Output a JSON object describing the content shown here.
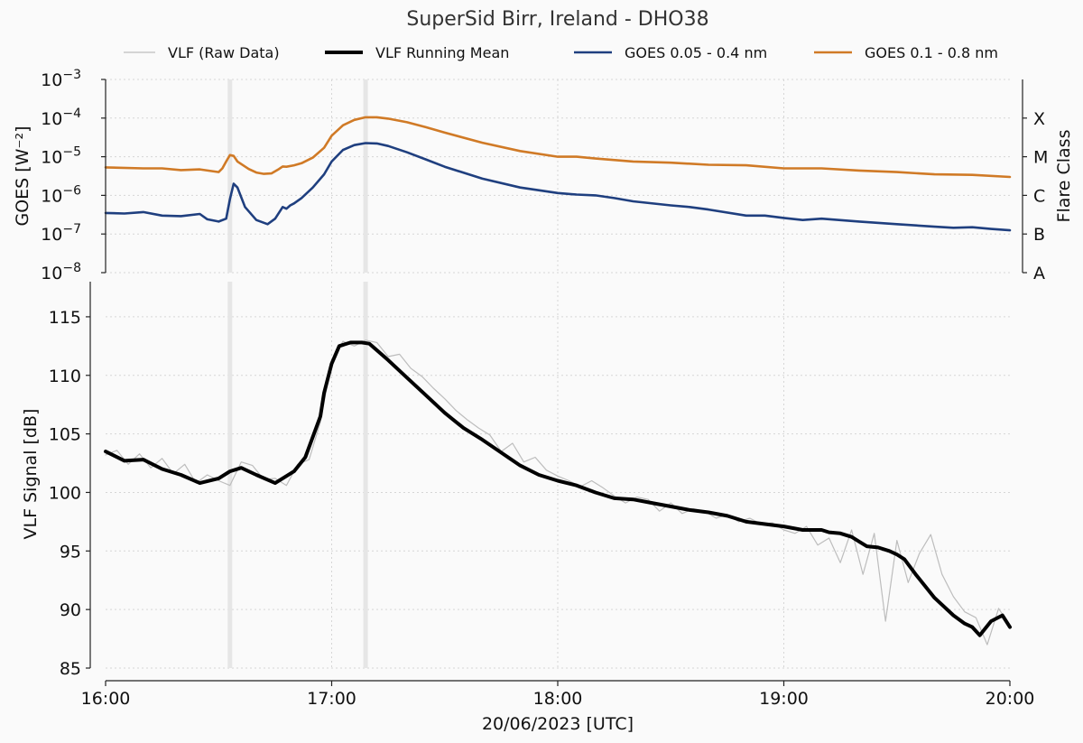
{
  "title": "SuperSid Birr, Ireland - DHO38",
  "legend": [
    {
      "label": "VLF (Raw Data)",
      "color": "#bdbdbd",
      "width": 1.2
    },
    {
      "label": "VLF Running Mean",
      "color": "#000000",
      "width": 4
    },
    {
      "label": "GOES 0.05 - 0.4 nm",
      "color": "#1f3f7f",
      "width": 2.5
    },
    {
      "label": "GOES 0.1 - 0.8 nm",
      "color": "#d07a26",
      "width": 2.5
    }
  ],
  "chart_data": [
    {
      "type": "line",
      "panel": "top",
      "ylabel": "GOES [W⁻²]",
      "yscale": "log",
      "ylim": [
        1e-08,
        0.001
      ],
      "ytick_labels": [
        {
          "exp": "-3"
        },
        {
          "exp": "-4"
        },
        {
          "exp": "-5"
        },
        {
          "exp": "-6"
        },
        {
          "exp": "-7"
        },
        {
          "exp": "-8"
        }
      ],
      "ytick_base": "10",
      "y2label": "Flare Class",
      "y2tick_labels": [
        "X",
        "M",
        "C",
        "B",
        "A"
      ],
      "xlim": [
        "16:00",
        "20:00"
      ],
      "grid": true,
      "event_markers": [
        "16:33",
        "17:09"
      ],
      "series": [
        {
          "name": "GOES 0.1 - 0.8 nm",
          "color": "#d07a26",
          "x": [
            "16:00",
            "16:10",
            "16:15",
            "16:20",
            "16:25",
            "16:30",
            "16:31",
            "16:32",
            "16:33",
            "16:34",
            "16:35",
            "16:38",
            "16:40",
            "16:42",
            "16:44",
            "16:46",
            "16:47",
            "16:48",
            "16:50",
            "16:52",
            "16:55",
            "16:58",
            "17:00",
            "17:03",
            "17:06",
            "17:09",
            "17:12",
            "17:15",
            "17:20",
            "17:25",
            "17:30",
            "17:40",
            "17:50",
            "18:00",
            "18:05",
            "18:10",
            "18:20",
            "18:30",
            "18:40",
            "18:50",
            "19:00",
            "19:10",
            "19:20",
            "19:30",
            "19:40",
            "19:50",
            "20:00"
          ],
          "y": [
            5.3e-06,
            5e-06,
            5e-06,
            4.5e-06,
            4.7e-06,
            4e-06,
            5e-06,
            7.5e-06,
            1.1e-05,
            1.05e-05,
            7.5e-06,
            4.8e-06,
            3.9e-06,
            3.6e-06,
            3.7e-06,
            4.8e-06,
            5.6e-06,
            5.5e-06,
            6e-06,
            6.8e-06,
            9.5e-06,
            1.7e-05,
            3.5e-05,
            6.5e-05,
            9e-05,
            0.000105,
            0.000105,
            9.7e-05,
            7.8e-05,
            5.8e-05,
            4.2e-05,
            2.3e-05,
            1.4e-05,
            1e-05,
            1e-05,
            9e-06,
            7.5e-06,
            7e-06,
            6.2e-06,
            6e-06,
            5e-06,
            5e-06,
            4.4e-06,
            4e-06,
            3.5e-06,
            3.4e-06,
            3e-06
          ]
        },
        {
          "name": "GOES 0.05 - 0.4 nm",
          "color": "#1f3f7f",
          "x": [
            "16:00",
            "16:05",
            "16:10",
            "16:15",
            "16:20",
            "16:25",
            "16:27",
            "16:30",
            "16:32",
            "16:33",
            "16:34",
            "16:35",
            "16:37",
            "16:40",
            "16:43",
            "16:45",
            "16:47",
            "16:48",
            "16:49",
            "16:50",
            "16:52",
            "16:55",
            "16:58",
            "17:00",
            "17:03",
            "17:06",
            "17:09",
            "17:12",
            "17:15",
            "17:20",
            "17:25",
            "17:30",
            "17:40",
            "17:50",
            "18:00",
            "18:05",
            "18:10",
            "18:15",
            "18:20",
            "18:30",
            "18:35",
            "18:40",
            "18:50",
            "18:55",
            "19:00",
            "19:05",
            "19:10",
            "19:20",
            "19:30",
            "19:40",
            "19:45",
            "19:50",
            "19:55",
            "20:00"
          ],
          "y": [
            3.5e-07,
            3.4e-07,
            3.7e-07,
            3e-07,
            2.9e-07,
            3.3e-07,
            2.4e-07,
            2.1e-07,
            2.5e-07,
            8e-07,
            2e-06,
            1.6e-06,
            5e-07,
            2.3e-07,
            1.8e-07,
            2.5e-07,
            5e-07,
            4.5e-07,
            5.5e-07,
            6.2e-07,
            8.5e-07,
            1.6e-06,
            3.5e-06,
            7.5e-06,
            1.5e-05,
            2e-05,
            2.25e-05,
            2.2e-05,
            1.9e-05,
            1.3e-05,
            8.5e-06,
            5.5e-06,
            2.7e-06,
            1.6e-06,
            1.15e-06,
            1.05e-06,
            1e-06,
            8.5e-07,
            7e-07,
            5.5e-07,
            5e-07,
            4.3e-07,
            3e-07,
            3e-07,
            2.6e-07,
            2.3e-07,
            2.5e-07,
            2.1e-07,
            1.8e-07,
            1.55e-07,
            1.45e-07,
            1.5e-07,
            1.35e-07,
            1.25e-07
          ]
        }
      ]
    },
    {
      "type": "line",
      "panel": "bottom",
      "ylabel": "VLF Signal [dB]",
      "ylim": [
        85,
        118
      ],
      "yticks": [
        85,
        90,
        95,
        100,
        105,
        110,
        115
      ],
      "xlabel": "20/06/2023 [UTC]",
      "xlim": [
        "16:00",
        "20:00"
      ],
      "xtick_labels": [
        "16:00",
        "17:00",
        "18:00",
        "19:00",
        "20:00"
      ],
      "grid": true,
      "event_markers": [
        "16:33",
        "17:09"
      ],
      "series": [
        {
          "name": "VLF Running Mean",
          "color": "#000000",
          "x": [
            "16:00",
            "16:05",
            "16:10",
            "16:15",
            "16:20",
            "16:25",
            "16:30",
            "16:33",
            "16:36",
            "16:40",
            "16:45",
            "16:50",
            "16:53",
            "16:57",
            "16:58",
            "17:00",
            "17:02",
            "17:05",
            "17:08",
            "17:10",
            "17:15",
            "17:20",
            "17:25",
            "17:30",
            "17:35",
            "17:40",
            "17:45",
            "17:50",
            "17:55",
            "18:00",
            "18:05",
            "18:10",
            "18:15",
            "18:20",
            "18:25",
            "18:30",
            "18:35",
            "18:40",
            "18:45",
            "18:50",
            "18:55",
            "19:00",
            "19:05",
            "19:10",
            "19:12",
            "19:15",
            "19:18",
            "19:20",
            "19:22",
            "19:25",
            "19:28",
            "19:30",
            "19:32",
            "19:35",
            "19:40",
            "19:45",
            "19:48",
            "19:50",
            "19:52",
            "19:55",
            "19:58",
            "20:00"
          ],
          "y": [
            103.5,
            102.7,
            102.8,
            102.0,
            101.5,
            100.8,
            101.2,
            101.8,
            102.1,
            101.5,
            100.8,
            101.8,
            103.0,
            106.5,
            108.5,
            111.0,
            112.5,
            112.8,
            112.8,
            112.7,
            111.3,
            109.8,
            108.3,
            106.8,
            105.5,
            104.5,
            103.4,
            102.3,
            101.5,
            101.0,
            100.6,
            100.0,
            99.5,
            99.4,
            99.1,
            98.8,
            98.5,
            98.3,
            98.0,
            97.5,
            97.3,
            97.1,
            96.8,
            96.8,
            96.6,
            96.5,
            96.2,
            95.8,
            95.4,
            95.3,
            95.0,
            94.7,
            94.3,
            93.0,
            91.0,
            89.5,
            88.8,
            88.5,
            87.8,
            89.0,
            89.5,
            88.5
          ]
        },
        {
          "name": "VLF (Raw Data)",
          "color": "#bdbdbd",
          "x": [
            "16:00",
            "16:03",
            "16:06",
            "16:09",
            "16:12",
            "16:15",
            "16:18",
            "16:21",
            "16:24",
            "16:27",
            "16:30",
            "16:33",
            "16:36",
            "16:39",
            "16:42",
            "16:45",
            "16:48",
            "16:51",
            "16:54",
            "16:57",
            "17:00",
            "17:03",
            "17:06",
            "17:09",
            "17:12",
            "17:15",
            "17:18",
            "17:21",
            "17:24",
            "17:27",
            "17:30",
            "17:33",
            "17:36",
            "17:39",
            "17:42",
            "17:45",
            "17:48",
            "17:51",
            "17:54",
            "17:57",
            "18:00",
            "18:03",
            "18:06",
            "18:09",
            "18:12",
            "18:15",
            "18:18",
            "18:21",
            "18:24",
            "18:27",
            "18:30",
            "18:33",
            "18:36",
            "18:39",
            "18:42",
            "18:45",
            "18:48",
            "18:51",
            "18:54",
            "18:57",
            "19:00",
            "19:03",
            "19:06",
            "19:09",
            "19:12",
            "19:15",
            "19:18",
            "19:21",
            "19:24",
            "19:27",
            "19:30",
            "19:33",
            "19:36",
            "19:39",
            "19:42",
            "19:45",
            "19:48",
            "19:51",
            "19:54",
            "19:57",
            "20:00"
          ],
          "y": [
            103.2,
            103.6,
            102.4,
            103.3,
            102.1,
            102.9,
            101.6,
            102.4,
            100.8,
            101.5,
            101.0,
            100.6,
            102.6,
            102.3,
            101.1,
            101.2,
            100.6,
            102.4,
            102.8,
            106.0,
            111.2,
            112.9,
            112.5,
            113.0,
            112.8,
            111.6,
            111.8,
            110.6,
            109.9,
            108.9,
            108.0,
            107.0,
            106.2,
            105.5,
            104.9,
            103.5,
            104.2,
            102.6,
            103.0,
            101.9,
            101.4,
            101.0,
            100.5,
            101.0,
            100.4,
            99.7,
            99.1,
            99.6,
            99.4,
            98.4,
            99.1,
            98.2,
            98.6,
            98.4,
            97.8,
            98.1,
            97.5,
            97.8,
            97.3,
            97.4,
            96.8,
            96.5,
            97.1,
            95.5,
            96.1,
            94.0,
            96.8,
            93.0,
            96.5,
            89.0,
            95.9,
            92.3,
            94.8,
            96.4,
            93.0,
            91.1,
            89.8,
            89.3,
            87.0,
            90.1,
            88.6
          ]
        }
      ]
    }
  ]
}
